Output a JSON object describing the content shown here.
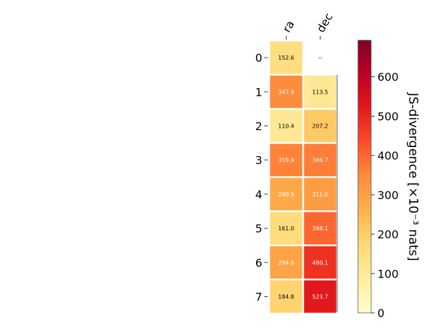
{
  "chart_data": {
    "type": "heatmap",
    "columns": [
      "ra",
      "dec"
    ],
    "rows": [
      "0",
      "1",
      "2",
      "3",
      "4",
      "5",
      "6",
      "7"
    ],
    "values": [
      [
        152.6,
        null
      ],
      [
        347.9,
        113.5
      ],
      [
        110.4,
        207.2
      ],
      [
        359.9,
        366.7
      ],
      [
        280.5,
        311.0
      ],
      [
        161.0,
        398.1
      ],
      [
        294.6,
        480.1
      ],
      [
        184.8,
        523.7
      ]
    ],
    "cell_labels": [
      [
        "152.6",
        "--"
      ],
      [
        "347.9",
        "113.5"
      ],
      [
        "110.4",
        "207.2"
      ],
      [
        "359.9",
        "366.7"
      ],
      [
        "280.5",
        "311.0"
      ],
      [
        "161.0",
        "398.1"
      ],
      [
        "294.6",
        "480.1"
      ],
      [
        "184.8",
        "523.7"
      ]
    ],
    "colorbar": {
      "label": "JS-divergence [×10⁻³ nats]",
      "ticks": [
        "0",
        "100",
        "200",
        "300",
        "400",
        "500",
        "600"
      ],
      "range": [
        0,
        693
      ],
      "colormap": "YlOrRd"
    }
  }
}
